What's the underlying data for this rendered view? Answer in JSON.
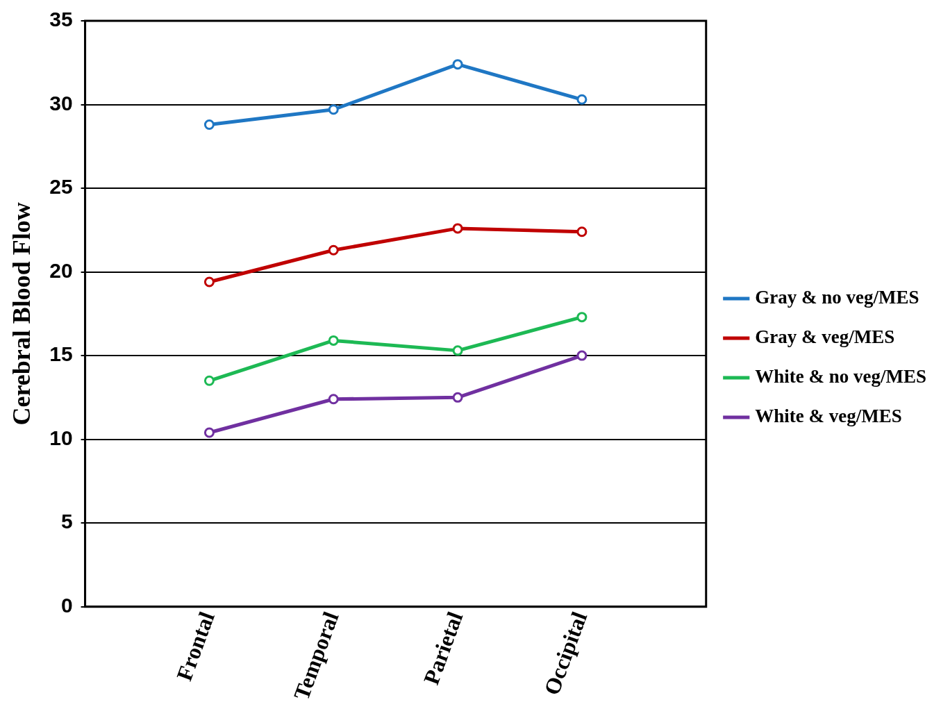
{
  "chart_data": {
    "type": "line",
    "ylabel": "Cerebral Blood Flow",
    "categories": [
      "Frontal",
      "Temporal",
      "Parietal",
      "Occipital"
    ],
    "series": [
      {
        "name": "Gray & no veg/MES",
        "color": "#1f77c4",
        "values": [
          28.8,
          29.7,
          32.4,
          30.3
        ]
      },
      {
        "name": "Gray & veg/MES",
        "color": "#c00000",
        "values": [
          19.4,
          21.3,
          22.6,
          22.4
        ]
      },
      {
        "name": "White & no veg/MES",
        "color": "#1db954",
        "values": [
          13.5,
          15.9,
          15.3,
          17.3
        ]
      },
      {
        "name": "White & veg/MES",
        "color": "#7030a0",
        "values": [
          10.4,
          12.4,
          12.5,
          15.0
        ]
      }
    ],
    "ylim": [
      0,
      35
    ],
    "yticks": [
      0,
      5,
      10,
      15,
      20,
      25,
      30,
      35
    ],
    "grid": "y",
    "legend": "right",
    "marker": "circle",
    "line_style": "solid"
  }
}
